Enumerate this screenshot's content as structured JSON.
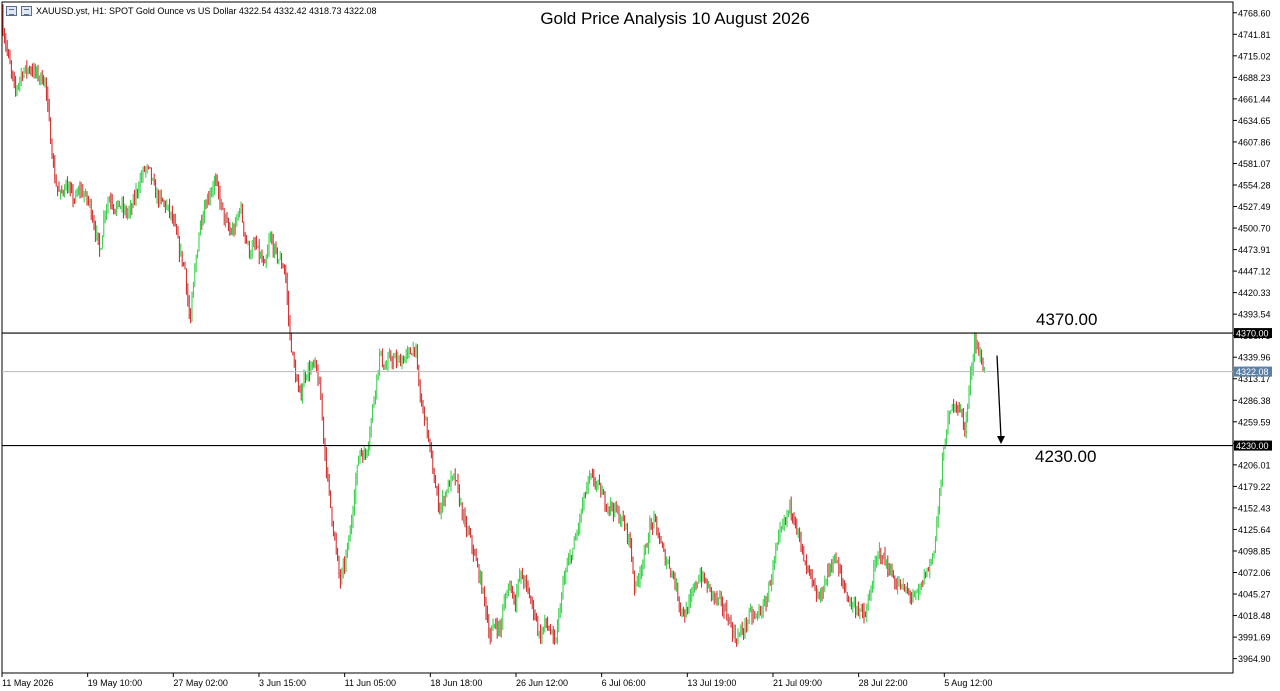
{
  "header": {
    "symbol_line": "XAUUSD.yst, H1:  SPOT Gold Ounce vs US Dollar  4322.54 4332.42 4318.73 4322.08"
  },
  "levels": {
    "resistance_label": "4370.00",
    "support_label": "4230.00"
  },
  "colors": {
    "bull": "#2ecc40",
    "bear": "#d02020",
    "grid_axis": "#000000",
    "current_price_tag": "#5b7fa6"
  },
  "chart_data": {
    "type": "candlestick",
    "title": "Gold Price Analysis 10 August 2026",
    "xlabel": "",
    "ylabel": "",
    "ylim": [
      3947.0,
      4782.0
    ],
    "y_ticks": [
      "4768.60",
      "4741.81",
      "4715.02",
      "4688.23",
      "4661.44",
      "4634.65",
      "4607.86",
      "4581.07",
      "4554.28",
      "4527.49",
      "4500.70",
      "4473.91",
      "4447.12",
      "4420.33",
      "4393.54",
      "4366.75",
      "4339.96",
      "4313.17",
      "4286.38",
      "4259.59",
      "4232.80",
      "4206.01",
      "4179.22",
      "4152.43",
      "4125.64",
      "4098.85",
      "4072.06",
      "4045.27",
      "4018.48",
      "3991.69",
      "3964.90"
    ],
    "x_ticks": [
      "11 May 2026",
      "19 May 10:00",
      "27 May 02:00",
      "3 Jun 15:00",
      "11 Jun 05:00",
      "18 Jun 18:00",
      "26 Jun 12:00",
      "6 Jul 06:00",
      "13 Jul 19:00",
      "21 Jul 09:00",
      "28 Jul 22:00",
      "5 Aug 12:00"
    ],
    "horizontal_lines": [
      {
        "value": 4370.0,
        "tag": "4370.00"
      },
      {
        "value": 4230.0,
        "tag": "4230.00"
      }
    ],
    "current_price": {
      "value": 4322.08,
      "tag": "4322.08"
    },
    "projection_arrow": {
      "from": 4342.0,
      "to": 4232.0
    },
    "price_path": [
      [
        0,
        4770
      ],
      [
        8,
        4715
      ],
      [
        15,
        4670
      ],
      [
        22,
        4695
      ],
      [
        30,
        4700
      ],
      [
        38,
        4690
      ],
      [
        45,
        4685
      ],
      [
        50,
        4620
      ],
      [
        55,
        4560
      ],
      [
        60,
        4540
      ],
      [
        65,
        4555
      ],
      [
        70,
        4545
      ],
      [
        75,
        4535
      ],
      [
        80,
        4550
      ],
      [
        85,
        4540
      ],
      [
        90,
        4530
      ],
      [
        95,
        4500
      ],
      [
        100,
        4470
      ],
      [
        105,
        4525
      ],
      [
        110,
        4540
      ],
      [
        115,
        4525
      ],
      [
        120,
        4530
      ],
      [
        125,
        4520
      ],
      [
        130,
        4520
      ],
      [
        135,
        4540
      ],
      [
        140,
        4560
      ],
      [
        145,
        4575
      ],
      [
        150,
        4570
      ],
      [
        155,
        4545
      ],
      [
        160,
        4535
      ],
      [
        165,
        4530
      ],
      [
        170,
        4520
      ],
      [
        175,
        4500
      ],
      [
        180,
        4470
      ],
      [
        185,
        4450
      ],
      [
        190,
        4380
      ],
      [
        195,
        4450
      ],
      [
        200,
        4505
      ],
      [
        205,
        4530
      ],
      [
        210,
        4545
      ],
      [
        215,
        4560
      ],
      [
        220,
        4535
      ],
      [
        225,
        4510
      ],
      [
        230,
        4495
      ],
      [
        235,
        4500
      ],
      [
        240,
        4530
      ],
      [
        245,
        4490
      ],
      [
        250,
        4470
      ],
      [
        255,
        4480
      ],
      [
        260,
        4465
      ],
      [
        265,
        4450
      ],
      [
        270,
        4490
      ],
      [
        275,
        4470
      ],
      [
        280,
        4460
      ],
      [
        285,
        4450
      ],
      [
        290,
        4365
      ],
      [
        295,
        4320
      ],
      [
        300,
        4290
      ],
      [
        305,
        4320
      ],
      [
        310,
        4325
      ],
      [
        315,
        4330
      ],
      [
        320,
        4300
      ],
      [
        325,
        4220
      ],
      [
        330,
        4160
      ],
      [
        335,
        4110
      ],
      [
        340,
        4060
      ],
      [
        345,
        4085
      ],
      [
        350,
        4120
      ],
      [
        355,
        4180
      ],
      [
        360,
        4225
      ],
      [
        365,
        4215
      ],
      [
        370,
        4250
      ],
      [
        375,
        4300
      ],
      [
        380,
        4345
      ],
      [
        385,
        4325
      ],
      [
        390,
        4340
      ],
      [
        395,
        4335
      ],
      [
        400,
        4335
      ],
      [
        405,
        4340
      ],
      [
        410,
        4345
      ],
      [
        415,
        4355
      ],
      [
        420,
        4290
      ],
      [
        425,
        4265
      ],
      [
        430,
        4225
      ],
      [
        435,
        4180
      ],
      [
        440,
        4150
      ],
      [
        445,
        4170
      ],
      [
        450,
        4185
      ],
      [
        455,
        4190
      ],
      [
        460,
        4160
      ],
      [
        465,
        4130
      ],
      [
        470,
        4115
      ],
      [
        475,
        4090
      ],
      [
        480,
        4065
      ],
      [
        485,
        4035
      ],
      [
        490,
        3990
      ],
      [
        495,
        4010
      ],
      [
        500,
        4000
      ],
      [
        505,
        4040
      ],
      [
        510,
        4060
      ],
      [
        515,
        4035
      ],
      [
        520,
        4070
      ],
      [
        525,
        4060
      ],
      [
        530,
        4040
      ],
      [
        535,
        4020
      ],
      [
        540,
        3990
      ],
      [
        545,
        4010
      ],
      [
        550,
        4000
      ],
      [
        555,
        3980
      ],
      [
        560,
        4030
      ],
      [
        565,
        4070
      ],
      [
        570,
        4090
      ],
      [
        575,
        4110
      ],
      [
        580,
        4140
      ],
      [
        585,
        4170
      ],
      [
        590,
        4190
      ],
      [
        595,
        4185
      ],
      [
        600,
        4175
      ],
      [
        605,
        4160
      ],
      [
        610,
        4155
      ],
      [
        615,
        4150
      ],
      [
        620,
        4140
      ],
      [
        625,
        4130
      ],
      [
        630,
        4110
      ],
      [
        635,
        4050
      ],
      [
        640,
        4075
      ],
      [
        645,
        4095
      ],
      [
        650,
        4130
      ],
      [
        655,
        4135
      ],
      [
        660,
        4110
      ],
      [
        665,
        4090
      ],
      [
        670,
        4080
      ],
      [
        675,
        4060
      ],
      [
        680,
        4030
      ],
      [
        685,
        4020
      ],
      [
        690,
        4035
      ],
      [
        695,
        4055
      ],
      [
        700,
        4070
      ],
      [
        705,
        4060
      ],
      [
        710,
        4050
      ],
      [
        715,
        4040
      ],
      [
        720,
        4035
      ],
      [
        725,
        4025
      ],
      [
        730,
        4010
      ],
      [
        735,
        3990
      ],
      [
        740,
        3995
      ],
      [
        745,
        4005
      ],
      [
        750,
        4020
      ],
      [
        755,
        4015
      ],
      [
        760,
        4025
      ],
      [
        765,
        4030
      ],
      [
        770,
        4060
      ],
      [
        775,
        4090
      ],
      [
        780,
        4120
      ],
      [
        785,
        4135
      ],
      [
        790,
        4155
      ],
      [
        795,
        4140
      ],
      [
        800,
        4110
      ],
      [
        805,
        4080
      ],
      [
        810,
        4070
      ],
      [
        815,
        4045
      ],
      [
        820,
        4040
      ],
      [
        825,
        4060
      ],
      [
        830,
        4080
      ],
      [
        835,
        4090
      ],
      [
        840,
        4070
      ],
      [
        845,
        4050
      ],
      [
        850,
        4035
      ],
      [
        855,
        4030
      ],
      [
        860,
        4025
      ],
      [
        865,
        4015
      ],
      [
        870,
        4045
      ],
      [
        875,
        4080
      ],
      [
        880,
        4100
      ],
      [
        885,
        4085
      ],
      [
        890,
        4075
      ],
      [
        895,
        4060
      ],
      [
        900,
        4055
      ],
      [
        905,
        4050
      ],
      [
        910,
        4045
      ],
      [
        915,
        4040
      ],
      [
        920,
        4050
      ],
      [
        925,
        4070
      ],
      [
        930,
        4080
      ],
      [
        935,
        4110
      ],
      [
        940,
        4175
      ],
      [
        945,
        4240
      ],
      [
        950,
        4270
      ],
      [
        955,
        4285
      ],
      [
        960,
        4275
      ],
      [
        965,
        4250
      ],
      [
        970,
        4310
      ],
      [
        975,
        4365
      ],
      [
        980,
        4340
      ],
      [
        985,
        4322
      ]
    ]
  }
}
